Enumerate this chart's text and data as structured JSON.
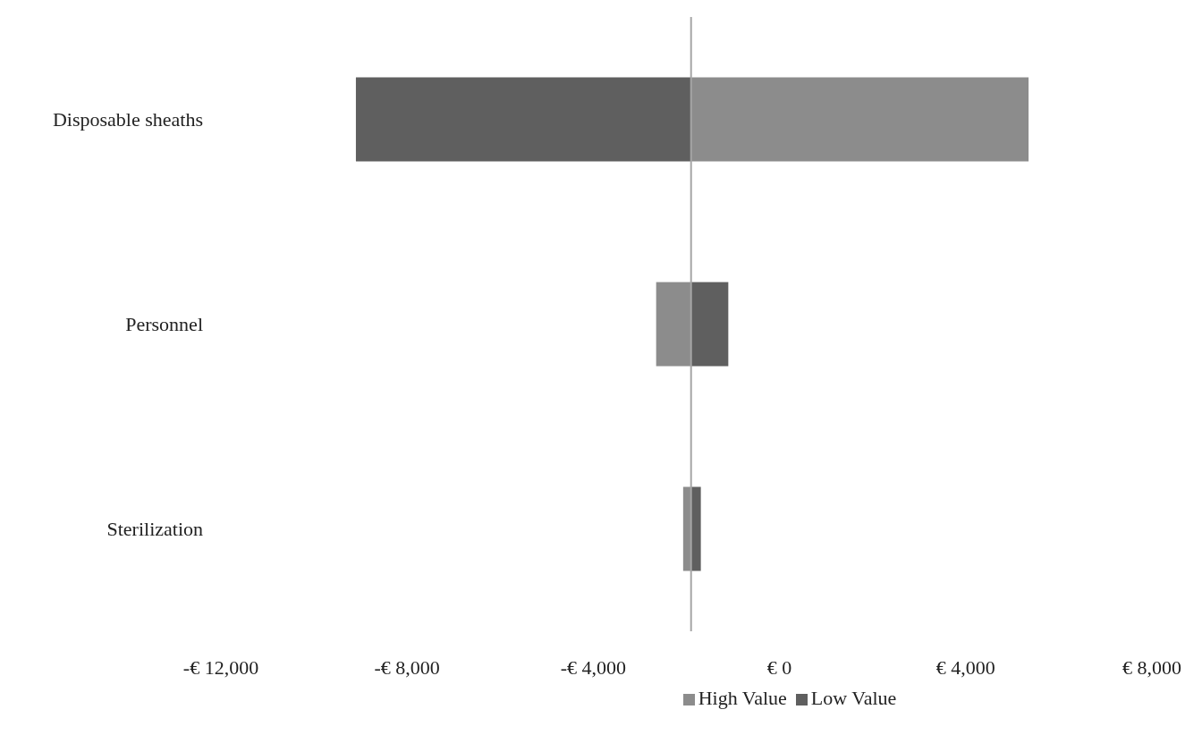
{
  "chart_data": {
    "type": "bar",
    "orientation": "horizontal",
    "categories": [
      "Disposable sheaths",
      "Personnel",
      "Sterilization"
    ],
    "series": [
      {
        "name": "High Value",
        "color": "#8c8c8c",
        "base": [
          -1900,
          -1900,
          -1900
        ],
        "values": [
          7250,
          -750,
          -170
        ]
      },
      {
        "name": "Low Value",
        "color": "#5f5f5f",
        "base": [
          -1900,
          -1900,
          -1900
        ],
        "values": [
          -7200,
          800,
          210
        ]
      }
    ],
    "xlim": [
      -12000,
      8000
    ],
    "xticks": [
      {
        "value": -12000,
        "label": "-€ 12,000"
      },
      {
        "value": -8000,
        "label": "-€ 8,000"
      },
      {
        "value": -4000,
        "label": "-€ 4,000"
      },
      {
        "value": 0,
        "label": "€ 0"
      },
      {
        "value": 4000,
        "label": "€ 4,000"
      },
      {
        "value": 8000,
        "label": "€ 8,000"
      }
    ],
    "ref_lines": [
      {
        "axis": "x",
        "value": -1900,
        "color": "#a6a6a6"
      }
    ],
    "grid": false,
    "legend": "bottom"
  }
}
